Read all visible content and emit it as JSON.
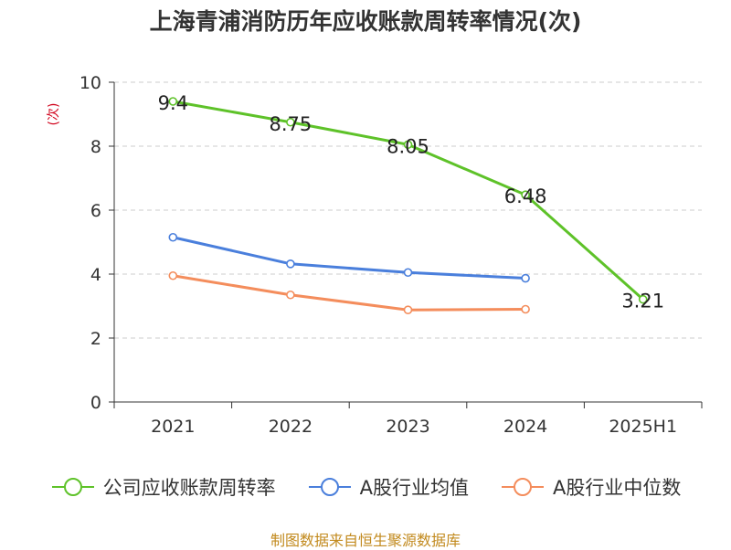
{
  "chart_data": {
    "type": "line",
    "title": "上海青浦消防历年应收账款周转率情况(次)",
    "ylabel": "(次)",
    "xlabel": "",
    "ylim": [
      0,
      10
    ],
    "yticks": [
      "0",
      "2",
      "4",
      "6",
      "8",
      "10"
    ],
    "categories": [
      "2021",
      "2022",
      "2023",
      "2024",
      "2025H1"
    ],
    "grid": true,
    "legend_position": "bottom",
    "series": [
      {
        "name": "公司应收账款周转率",
        "color": "#5ec229",
        "values": [
          9.4,
          8.75,
          8.05,
          6.48,
          3.21
        ],
        "labels": [
          "9.4",
          "8.75",
          "8.05",
          "6.48",
          "3.21"
        ]
      },
      {
        "name": "A股行业均值",
        "color": "#4a7fdc",
        "values": [
          5.15,
          4.32,
          4.05,
          3.87,
          null
        ]
      },
      {
        "name": "A股行业中位数",
        "color": "#f48d5c",
        "values": [
          3.95,
          3.35,
          2.88,
          2.9,
          null
        ]
      }
    ]
  },
  "source": "制图数据来自恒生聚源数据库"
}
